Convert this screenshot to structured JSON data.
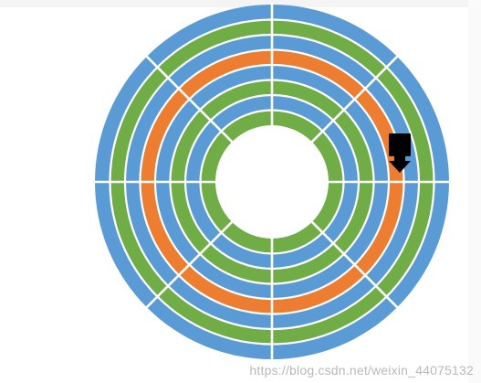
{
  "disk": {
    "track_colors": [
      "#5b9bd5",
      "#70ad47",
      "#5b9bd5",
      "#ed7d31",
      "#5b9bd5",
      "#70ad47",
      "#5b9bd5",
      "#70ad47"
    ],
    "separator_color": "#ffffff",
    "hole_color": "#ffffff",
    "sector_count": 8,
    "highlighted_track": 4,
    "highlight_color": "#ed7d31"
  },
  "read_head": {
    "icon": "read-write-head-icon",
    "color": "#000000"
  },
  "watermark": "https://blog.csdn.net/weixin_44075132"
}
